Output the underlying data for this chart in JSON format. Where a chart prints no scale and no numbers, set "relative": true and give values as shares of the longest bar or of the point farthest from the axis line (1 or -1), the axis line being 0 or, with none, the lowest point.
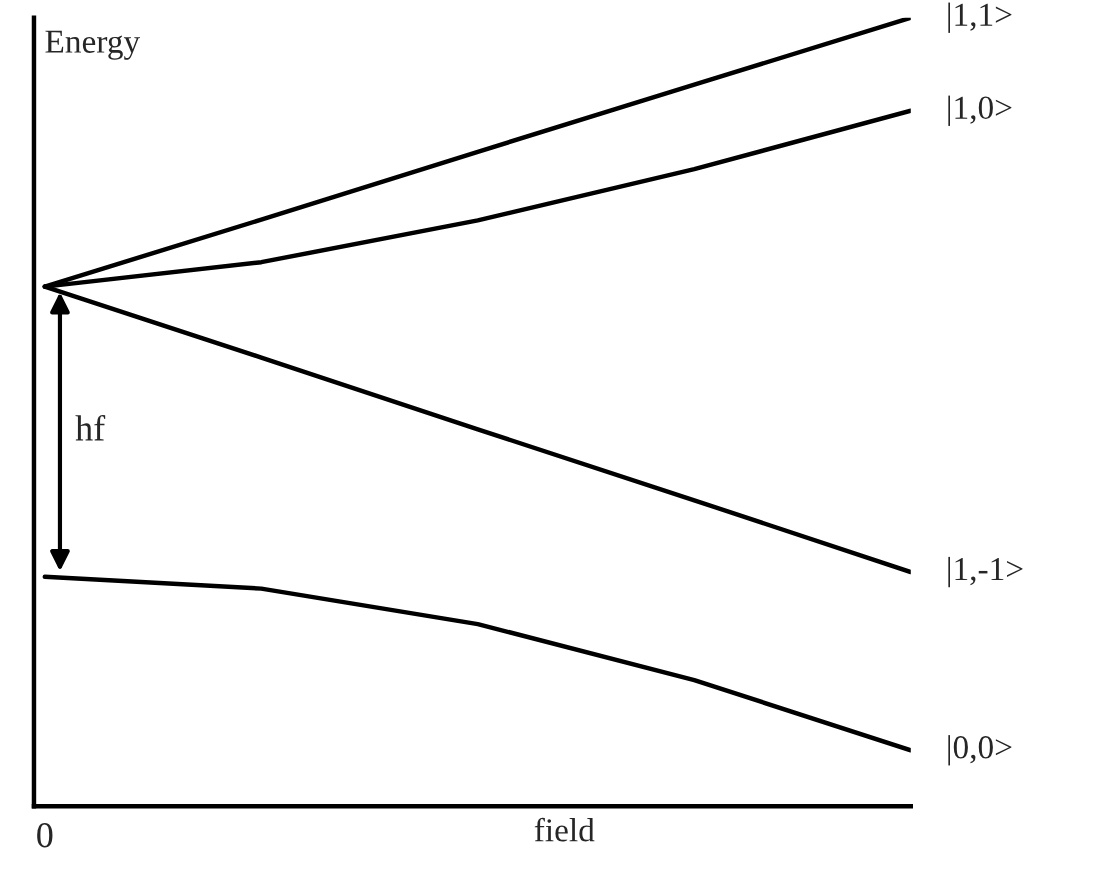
{
  "chart_data": {
    "type": "line",
    "relative": true,
    "ylabel": "Energy",
    "xlabel": "field",
    "categories": [
      null,
      null,
      null,
      null,
      null
    ],
    "series": [
      {
        "name": "|1,1>",
        "color": "#000000",
        "values": [
          0.659,
          0.744,
          0.83,
          0.915,
          1.0
        ]
      },
      {
        "name": "|1,0>",
        "color": "#000000",
        "values": [
          0.659,
          0.69,
          0.743,
          0.808,
          0.882
        ]
      },
      {
        "name": "|1,-1>",
        "color": "#000000",
        "values": [
          0.659,
          0.569,
          0.478,
          0.388,
          0.297
        ]
      },
      {
        "name": "|0,0>",
        "color": "#000000",
        "values": [
          0.291,
          0.276,
          0.231,
          0.16,
          0.071
        ]
      }
    ],
    "annotations": [
      "hf",
      "0"
    ],
    "grid": false,
    "legend": false,
    "marker": "none",
    "line_style": "solid"
  }
}
